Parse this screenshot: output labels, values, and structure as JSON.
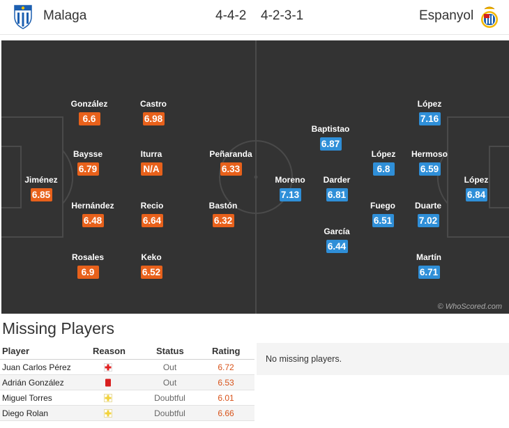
{
  "header": {
    "home_team": "Malaga",
    "away_team": "Espanyol",
    "home_formation": "4-4-2",
    "away_formation": "4-2-3-1",
    "home_crest_icon": "malaga-crest-icon",
    "away_crest_icon": "espanyol-crest-icon"
  },
  "colors": {
    "home_rating_bg": "#e8611b",
    "away_rating_bg": "#2f8fd8",
    "pitch": "#333333",
    "pitch_lines": "#4a4a4a"
  },
  "pitch": {
    "watermark": "© WhoScored.com",
    "home_players": [
      {
        "name": "Jiménez",
        "rating": "6.85"
      },
      {
        "name": "González",
        "rating": "6.6"
      },
      {
        "name": "Baysse",
        "rating": "6.79"
      },
      {
        "name": "Hernández",
        "rating": "6.48"
      },
      {
        "name": "Rosales",
        "rating": "6.9"
      },
      {
        "name": "Castro",
        "rating": "6.98"
      },
      {
        "name": "Iturra",
        "rating": "N/A"
      },
      {
        "name": "Recio",
        "rating": "6.64"
      },
      {
        "name": "Keko",
        "rating": "6.52"
      },
      {
        "name": "Peñaranda",
        "rating": "6.33"
      },
      {
        "name": "Bastón",
        "rating": "6.32"
      }
    ],
    "away_players": [
      {
        "name": "López",
        "rating": "6.84"
      },
      {
        "name": "López",
        "rating": "7.16"
      },
      {
        "name": "Hermoso",
        "rating": "6.59"
      },
      {
        "name": "Duarte",
        "rating": "7.02"
      },
      {
        "name": "Martín",
        "rating": "6.71"
      },
      {
        "name": "López",
        "rating": "6.8"
      },
      {
        "name": "Fuego",
        "rating": "6.51"
      },
      {
        "name": "Baptistao",
        "rating": "6.87"
      },
      {
        "name": "Darder",
        "rating": "6.81"
      },
      {
        "name": "García",
        "rating": "6.44"
      },
      {
        "name": "Moreno",
        "rating": "7.13"
      }
    ]
  },
  "missing": {
    "title": "Missing Players",
    "columns": {
      "player": "Player",
      "reason": "Reason",
      "status": "Status",
      "rating": "Rating"
    },
    "rows": [
      {
        "player": "Juan Carlos Pérez",
        "reason_icon": "injury-cross-icon",
        "status": "Out",
        "rating": "6.72"
      },
      {
        "player": "Adrián González",
        "reason_icon": "red-card-icon",
        "status": "Out",
        "rating": "6.53"
      },
      {
        "player": "Miguel Torres",
        "reason_icon": "doubtful-cross-icon",
        "status": "Doubtful",
        "rating": "6.01"
      },
      {
        "player": "Diego Rolan",
        "reason_icon": "doubtful-cross-icon",
        "status": "Doubtful",
        "rating": "6.66"
      }
    ],
    "away_message": "No missing players."
  }
}
